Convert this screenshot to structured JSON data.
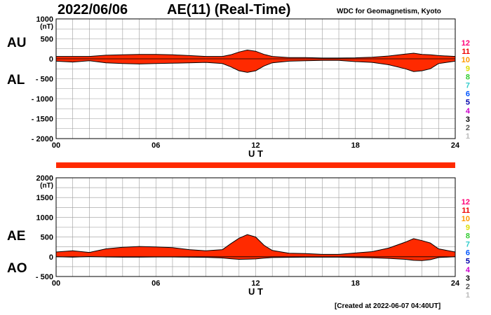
{
  "header": {
    "date": "2022/06/06",
    "title": "AE(11) (Real-Time)",
    "source": "WDC for Geomagnetism, Kyoto"
  },
  "footer": {
    "created": "[Created at 2022-06-07 04:40UT]"
  },
  "labels": {
    "au": "AU",
    "al": "AL",
    "ae": "AE",
    "ao": "AO"
  },
  "colors": {
    "fill": "#ff2a00",
    "outline": "#000000",
    "grid": "#9a9a9a",
    "station_scale": [
      "#ff0077",
      "#ee0000",
      "#ff9900",
      "#dddd00",
      "#33cc33",
      "#33cccc",
      "#0055ff",
      "#0000aa",
      "#cc00cc",
      "#000000",
      "#555555",
      "#bbbbbb"
    ]
  },
  "station_scale": [
    "12",
    "11",
    "10",
    "9",
    "8",
    "7",
    "6",
    "5",
    "4",
    "3",
    "2",
    "1"
  ],
  "chart_data": [
    {
      "type": "area",
      "panel": "AU/AL",
      "unit": "(nT)",
      "xlabel": "U T",
      "ylim": [
        -2000,
        1000
      ],
      "yticks": [
        1000,
        500,
        0,
        -500,
        -1000,
        -1500,
        -2000
      ],
      "ytick_labels": [
        "1000",
        "500",
        "0",
        "- 500",
        "- 1000",
        "- 1500",
        "- 2000"
      ],
      "xlim": [
        0,
        24
      ],
      "xticks": [
        0,
        6,
        12,
        18,
        24
      ],
      "xtick_labels": [
        "00",
        "06",
        "12",
        "18",
        "24"
      ],
      "series": [
        {
          "hour": [
            0,
            1,
            2,
            3,
            4,
            5,
            6,
            7,
            8,
            9,
            10,
            10.5,
            11,
            11.5,
            12,
            12.5,
            13,
            14,
            15,
            16,
            17,
            18,
            19,
            20,
            21,
            21.5,
            22,
            22.5,
            23,
            24
          ],
          "values": [
            60,
            60,
            60,
            90,
            100,
            110,
            110,
            100,
            80,
            60,
            60,
            100,
            170,
            220,
            190,
            110,
            60,
            30,
            30,
            20,
            20,
            25,
            40,
            70,
            120,
            140,
            110,
            100,
            80,
            60
          ]
        },
        {
          "hour": [
            0,
            1,
            2,
            3,
            4,
            5,
            6,
            7,
            8,
            9,
            10,
            10.5,
            11,
            11.5,
            12,
            12.5,
            13,
            14,
            15,
            16,
            17,
            18,
            19,
            20,
            21,
            21.5,
            22,
            22.5,
            23,
            24
          ],
          "values": [
            -60,
            -80,
            -50,
            -100,
            -120,
            -130,
            -120,
            -110,
            -100,
            -90,
            -120,
            -200,
            -300,
            -340,
            -300,
            -180,
            -100,
            -60,
            -50,
            -40,
            -40,
            -70,
            -90,
            -150,
            -250,
            -320,
            -300,
            -250,
            -120,
            -60
          ]
        }
      ]
    },
    {
      "type": "area",
      "panel": "AE/AO",
      "unit": "(nT)",
      "xlabel": "U T",
      "ylim": [
        -500,
        2000
      ],
      "yticks": [
        2000,
        1500,
        1000,
        500,
        0,
        -500
      ],
      "ytick_labels": [
        "2000",
        "1500",
        "1000",
        "500",
        "0",
        "- 500"
      ],
      "xlim": [
        0,
        24
      ],
      "xticks": [
        0,
        6,
        12,
        18,
        24
      ],
      "xtick_labels": [
        "00",
        "06",
        "12",
        "18",
        "24"
      ],
      "series": [
        {
          "hour": [
            0,
            1,
            2,
            3,
            4,
            5,
            6,
            7,
            8,
            9,
            10,
            10.5,
            11,
            11.5,
            12,
            12.5,
            13,
            14,
            15,
            16,
            17,
            18,
            19,
            20,
            21,
            21.5,
            22,
            22.5,
            23,
            24
          ],
          "values": [
            120,
            150,
            110,
            200,
            240,
            260,
            250,
            230,
            180,
            150,
            180,
            330,
            470,
            560,
            500,
            290,
            160,
            90,
            80,
            60,
            60,
            95,
            130,
            220,
            370,
            460,
            410,
            350,
            200,
            120
          ]
        },
        {
          "hour": [
            0,
            1,
            2,
            3,
            4,
            5,
            6,
            7,
            8,
            9,
            10,
            10.5,
            11,
            11.5,
            12,
            12.5,
            13,
            14,
            15,
            16,
            17,
            18,
            19,
            20,
            21,
            21.5,
            22,
            22.5,
            23,
            24
          ],
          "values": [
            0,
            -10,
            5,
            -5,
            -10,
            -10,
            -5,
            -5,
            -10,
            -15,
            -30,
            -50,
            -65,
            -60,
            -55,
            -35,
            -20,
            -15,
            -10,
            -10,
            -10,
            -20,
            -25,
            -40,
            -65,
            -90,
            -95,
            -75,
            -20,
            0
          ]
        }
      ]
    }
  ]
}
